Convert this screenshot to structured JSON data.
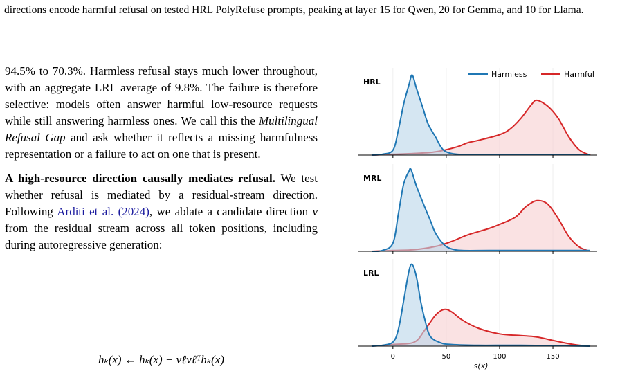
{
  "caption": {
    "text": "directions encode harmful refusal on tested HRL PolyRefuse prompts, peaking at layer 15 for Qwen, 20 for Gemma, and 10 for Llama."
  },
  "body": {
    "para1_pre": "94.5% to 70.3%. Harmless refusal stays much lower throughout, with an aggregate LRL average of 9.8%. The failure is therefore selective: models often answer harmful low-resource requests while still answering harmless ones. We call this the ",
    "para1_term": "Multilingual Refusal Gap",
    "para1_post": " and ask whether it reflects a missing harmfulness representation or a failure to act on one that is present.",
    "para2_heading": "A high-resource direction causally mediates refusal.",
    "para2_pre": " We test whether refusal is mediated by a residual-stream direction. Following ",
    "para2_cite": "Arditi et al. (2024)",
    "para2_mid": ", we ablate a candidate direction ",
    "para2_var": "v",
    "para2_post": " from the residual stream across all token positions, including during autoregressive generation:",
    "equation": "hₖ(x) ← hₖ(x) − vℓvℓᵀhₖ(x)"
  },
  "figure": {
    "legend": {
      "harmless": "Harmless",
      "harmful": "Harmful"
    },
    "colors": {
      "harmless": "#1f77b4",
      "harmful": "#d62728"
    },
    "xlabel": "s(x)",
    "xticks": [
      0,
      50,
      100,
      150
    ]
  },
  "chart_data": [
    {
      "type": "area",
      "title": "HRL",
      "xlim": [
        -20,
        185
      ],
      "series": [
        {
          "name": "Harmless",
          "x": [
            -20,
            -10,
            0,
            5,
            10,
            15,
            18,
            22,
            28,
            33,
            40,
            45,
            50,
            60,
            80,
            120,
            185
          ],
          "y": [
            0,
            0.01,
            0.06,
            0.3,
            0.62,
            0.86,
            0.98,
            0.82,
            0.58,
            0.38,
            0.22,
            0.1,
            0.04,
            0.01,
            0.005,
            0.005,
            0.005
          ]
        },
        {
          "name": "Harmful",
          "x": [
            -20,
            0,
            20,
            40,
            60,
            70,
            80,
            100,
            110,
            120,
            130,
            135,
            145,
            155,
            165,
            175,
            185
          ],
          "y": [
            0,
            0.01,
            0.02,
            0.04,
            0.1,
            0.15,
            0.18,
            0.25,
            0.32,
            0.45,
            0.62,
            0.67,
            0.6,
            0.45,
            0.22,
            0.06,
            0
          ]
        }
      ]
    },
    {
      "type": "area",
      "title": "MRL",
      "xlim": [
        -20,
        185
      ],
      "series": [
        {
          "name": "Harmless",
          "x": [
            -20,
            -10,
            0,
            5,
            10,
            15,
            17,
            22,
            28,
            35,
            40,
            48,
            55,
            65,
            90,
            130,
            185
          ],
          "y": [
            0,
            0.01,
            0.1,
            0.45,
            0.82,
            0.98,
            1.0,
            0.8,
            0.6,
            0.38,
            0.22,
            0.08,
            0.03,
            0.01,
            0.01,
            0.01,
            0.01
          ]
        },
        {
          "name": "Harmful",
          "x": [
            -20,
            0,
            20,
            40,
            55,
            70,
            90,
            100,
            115,
            125,
            135,
            145,
            155,
            165,
            175,
            185
          ],
          "y": [
            0,
            0.01,
            0.02,
            0.06,
            0.12,
            0.2,
            0.28,
            0.33,
            0.42,
            0.55,
            0.62,
            0.58,
            0.4,
            0.18,
            0.05,
            0
          ]
        }
      ]
    },
    {
      "type": "area",
      "title": "LRL",
      "xlim": [
        -20,
        185
      ],
      "series": [
        {
          "name": "Harmless",
          "x": [
            -20,
            -10,
            0,
            5,
            10,
            15,
            18,
            22,
            26,
            30,
            35,
            45,
            55,
            80,
            120,
            185
          ],
          "y": [
            0,
            0.01,
            0.05,
            0.2,
            0.55,
            0.92,
            1.0,
            0.85,
            0.55,
            0.32,
            0.12,
            0.04,
            0.02,
            0.01,
            0.01,
            0
          ]
        },
        {
          "name": "Harmful",
          "x": [
            -20,
            0,
            20,
            30,
            40,
            48,
            55,
            65,
            80,
            100,
            120,
            130,
            140,
            150,
            165,
            175,
            185
          ],
          "y": [
            0,
            0.02,
            0.05,
            0.2,
            0.38,
            0.45,
            0.42,
            0.32,
            0.22,
            0.15,
            0.13,
            0.12,
            0.1,
            0.07,
            0.03,
            0.01,
            0
          ]
        }
      ]
    }
  ]
}
